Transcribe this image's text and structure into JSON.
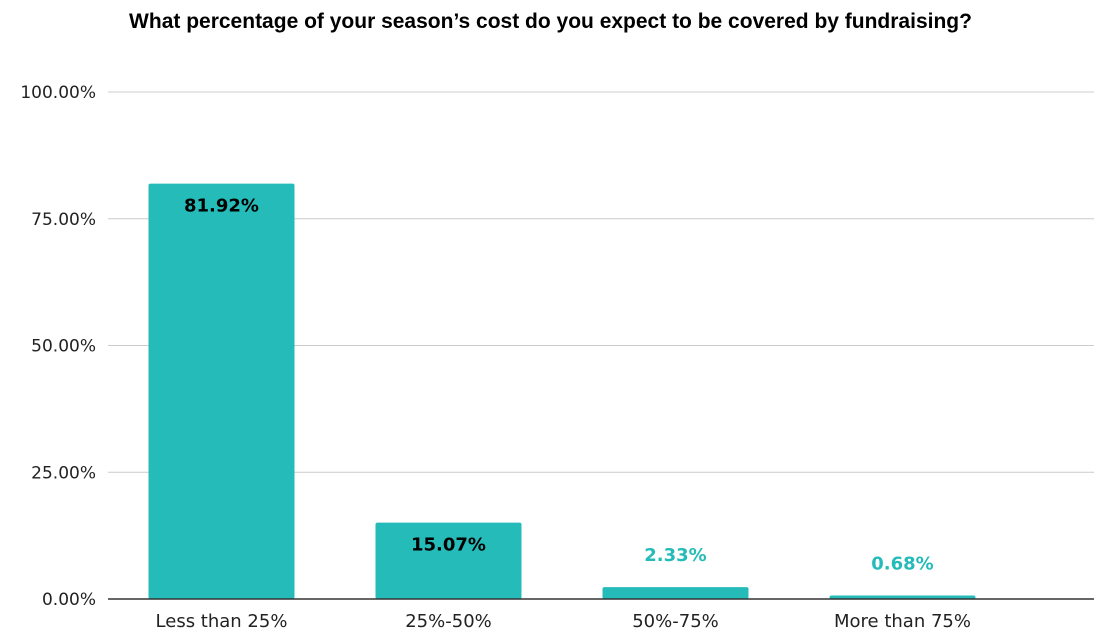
{
  "chart_data": {
    "type": "bar",
    "title": "What percentage of your season’s cost do you expect to be covered by fundraising?",
    "xlabel": "",
    "ylabel": "",
    "categories": [
      "Less than 25%",
      "25%-50%",
      "50%-75%",
      "More than 75%"
    ],
    "values": [
      81.92,
      15.07,
      2.33,
      0.68
    ],
    "data_labels": [
      "81.92%",
      "15.07%",
      "2.33%",
      "0.68%"
    ],
    "ylim": [
      0,
      100
    ],
    "yticks": [
      0,
      25,
      50,
      75,
      100
    ],
    "ytick_labels": [
      "0.00%",
      "25.00%",
      "50.00%",
      "75.00%",
      "100.00%"
    ],
    "grid": true,
    "legend": "none",
    "colors": {
      "bar": "#24bbb9",
      "label_inside": "#000000",
      "label_outside": "#24bbb9",
      "grid": "#cccccc",
      "axis": "#333333"
    }
  }
}
